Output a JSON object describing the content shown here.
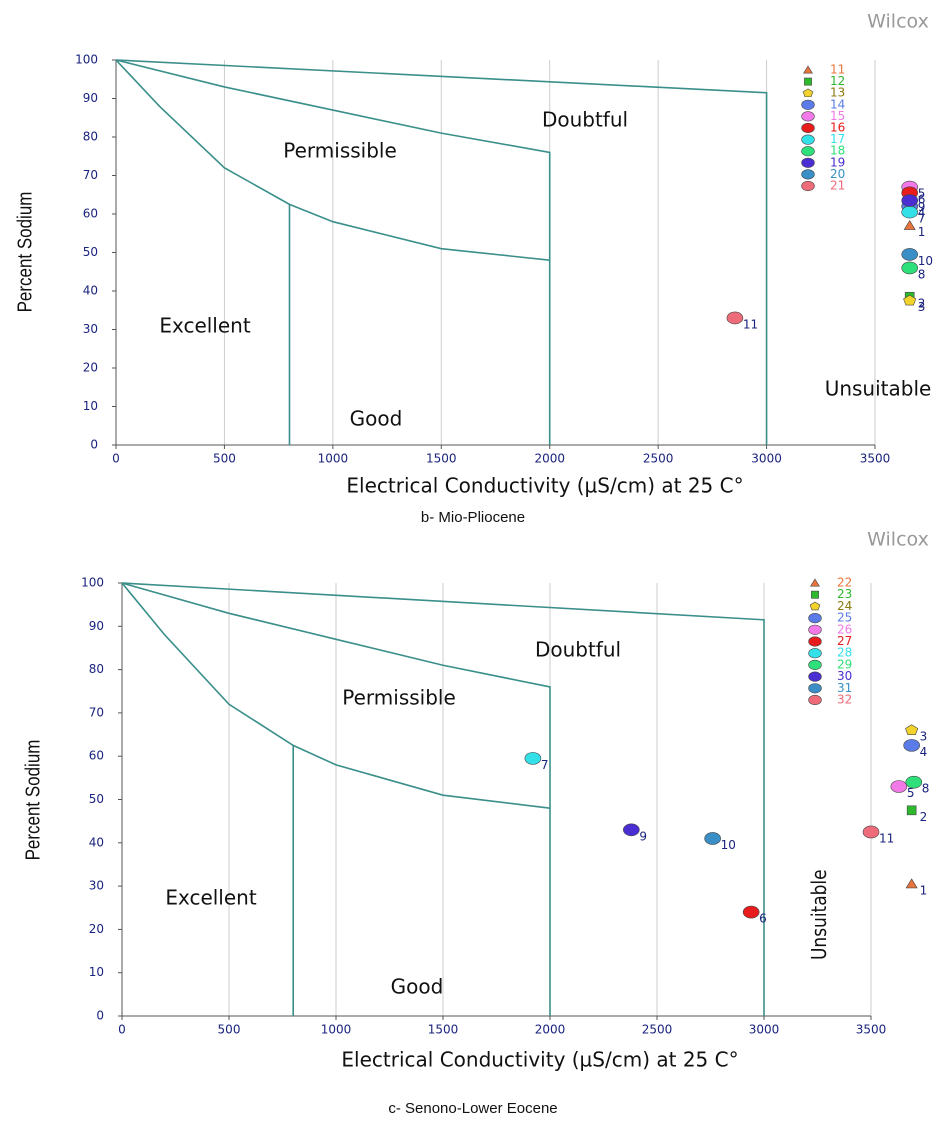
{
  "chart_data": [
    {
      "type": "scatter",
      "title": "Wilcox",
      "caption": "b- Mio-Pliocene",
      "xlabel": "Electrical Conductivity (µS/cm) at 25 C°",
      "ylabel": "Percent Sodium",
      "xlim": [
        0,
        3500
      ],
      "ylim": [
        0,
        100
      ],
      "xticks": [
        0,
        500,
        1000,
        1500,
        2000,
        2500,
        3000,
        3500
      ],
      "yticks": [
        0,
        10,
        20,
        30,
        40,
        50,
        60,
        70,
        80,
        90,
        100
      ],
      "grid": "x",
      "regions": [
        "Excellent",
        "Good",
        "Permissible",
        "Doubtful",
        "Unsuitable"
      ],
      "boundaries": [
        {
          "x": [
            0,
            3000,
            3000
          ],
          "y": [
            100,
            91.5,
            0
          ]
        },
        {
          "x": [
            0,
            500,
            1000,
            1500,
            2000,
            2000
          ],
          "y": [
            100,
            93,
            87,
            81,
            76,
            0
          ]
        },
        {
          "x": [
            0,
            200,
            500,
            800,
            1000,
            1500,
            2000
          ],
          "y": [
            100,
            88,
            72,
            62.5,
            58,
            51,
            48
          ]
        },
        {
          "x": [
            800,
            800
          ],
          "y": [
            62.5,
            0
          ]
        }
      ],
      "series": [
        {
          "name": "11",
          "color": "#e8743b",
          "marker": "triangle",
          "x": [
            3660
          ],
          "values": [
            57
          ],
          "point_labels": [
            "1"
          ]
        },
        {
          "name": "12",
          "color": "#2eb82e",
          "marker": "square",
          "x": [
            3660
          ],
          "values": [
            38.5
          ],
          "point_labels": [
            "2"
          ]
        },
        {
          "name": "13",
          "color": "#f2d32b",
          "marker": "pentagon",
          "x": [
            3660
          ],
          "values": [
            37.5
          ],
          "point_labels": [
            "3"
          ]
        },
        {
          "name": "14",
          "color": "#5b7ce8",
          "marker": "circle",
          "x": [
            3660
          ],
          "values": [
            62
          ],
          "point_labels": [
            "4"
          ]
        },
        {
          "name": "15",
          "color": "#f27ae8",
          "marker": "circle",
          "x": [
            3660
          ],
          "values": [
            67
          ],
          "point_labels": [
            "5"
          ]
        },
        {
          "name": "16",
          "color": "#e81c1c",
          "marker": "circle",
          "x": [
            3660
          ],
          "values": [
            65.5
          ],
          "point_labels": [
            "6"
          ]
        },
        {
          "name": "17",
          "color": "#33e0e8",
          "marker": "circle",
          "x": [
            3660
          ],
          "values": [
            60.5
          ],
          "point_labels": [
            "7"
          ]
        },
        {
          "name": "18",
          "color": "#2ee07a",
          "marker": "circle",
          "x": [
            3660
          ],
          "values": [
            46
          ],
          "point_labels": [
            "8"
          ]
        },
        {
          "name": "19",
          "color": "#4a2ed1",
          "marker": "circle",
          "x": [
            3660
          ],
          "values": [
            63.5
          ],
          "point_labels": [
            "9"
          ]
        },
        {
          "name": "20",
          "color": "#3a8fc7",
          "marker": "circle",
          "x": [
            3660
          ],
          "values": [
            49.5
          ],
          "point_labels": [
            "10"
          ]
        },
        {
          "name": "21",
          "color": "#ee6b7a",
          "marker": "circle",
          "x": [
            2854
          ],
          "values": [
            33
          ],
          "point_labels": [
            "11"
          ]
        }
      ]
    },
    {
      "type": "scatter",
      "title": "Wilcox",
      "caption": "c- Senono-Lower Eocene",
      "xlabel": "Electrical Conductivity (µS/cm) at 25 C°",
      "ylabel": "Percent Sodium",
      "xlim": [
        0,
        3500
      ],
      "ylim": [
        0,
        100
      ],
      "xticks": [
        0,
        500,
        1000,
        1500,
        2000,
        2500,
        3000,
        3500
      ],
      "yticks": [
        0,
        10,
        20,
        30,
        40,
        50,
        60,
        70,
        80,
        90,
        100
      ],
      "grid": "x",
      "regions": [
        "Excellent",
        "Good",
        "Permissible",
        "Doubtful",
        "Unsuitable"
      ],
      "boundaries": [
        {
          "x": [
            0,
            3000,
            3000
          ],
          "y": [
            100,
            91.5,
            0
          ]
        },
        {
          "x": [
            0,
            500,
            1000,
            1500,
            2000,
            2000
          ],
          "y": [
            100,
            93,
            87,
            81,
            76,
            0
          ]
        },
        {
          "x": [
            0,
            200,
            500,
            800,
            1000,
            1500,
            2000
          ],
          "y": [
            100,
            88,
            72,
            62.5,
            58,
            51,
            48
          ]
        },
        {
          "x": [
            800,
            800
          ],
          "y": [
            62.5,
            0
          ]
        }
      ],
      "series": [
        {
          "name": "22",
          "color": "#e8743b",
          "marker": "triangle",
          "x": [
            3690
          ],
          "values": [
            30.5
          ],
          "point_labels": [
            "1"
          ]
        },
        {
          "name": "23",
          "color": "#2eb82e",
          "marker": "square",
          "x": [
            3690
          ],
          "values": [
            47.5
          ],
          "point_labels": [
            "2"
          ]
        },
        {
          "name": "24",
          "color": "#f2d32b",
          "marker": "pentagon",
          "x": [
            3690
          ],
          "values": [
            66
          ],
          "point_labels": [
            "3"
          ]
        },
        {
          "name": "25",
          "color": "#5b7ce8",
          "marker": "circle",
          "x": [
            3690
          ],
          "values": [
            62.5
          ],
          "point_labels": [
            "4"
          ]
        },
        {
          "name": "26",
          "color": "#f27ae8",
          "marker": "circle",
          "x": [
            3630
          ],
          "values": [
            53
          ],
          "point_labels": [
            "5"
          ]
        },
        {
          "name": "27",
          "color": "#e81c1c",
          "marker": "circle",
          "x": [
            2940
          ],
          "values": [
            24
          ],
          "point_labels": [
            "6"
          ]
        },
        {
          "name": "28",
          "color": "#33e0e8",
          "marker": "circle",
          "x": [
            1920
          ],
          "values": [
            59.5
          ],
          "point_labels": [
            "7"
          ]
        },
        {
          "name": "29",
          "color": "#2ee07a",
          "marker": "circle",
          "x": [
            3700
          ],
          "values": [
            54
          ],
          "point_labels": [
            "8"
          ]
        },
        {
          "name": "30",
          "color": "#4a2ed1",
          "marker": "circle",
          "x": [
            2380
          ],
          "values": [
            43
          ],
          "point_labels": [
            "9"
          ]
        },
        {
          "name": "31",
          "color": "#3a8fc7",
          "marker": "circle",
          "x": [
            2760
          ],
          "values": [
            41
          ],
          "point_labels": [
            "10"
          ]
        },
        {
          "name": "32",
          "color": "#ee6b7a",
          "marker": "circle",
          "x": [
            3500
          ],
          "values": [
            42.5
          ],
          "point_labels": [
            "11"
          ]
        }
      ]
    }
  ]
}
